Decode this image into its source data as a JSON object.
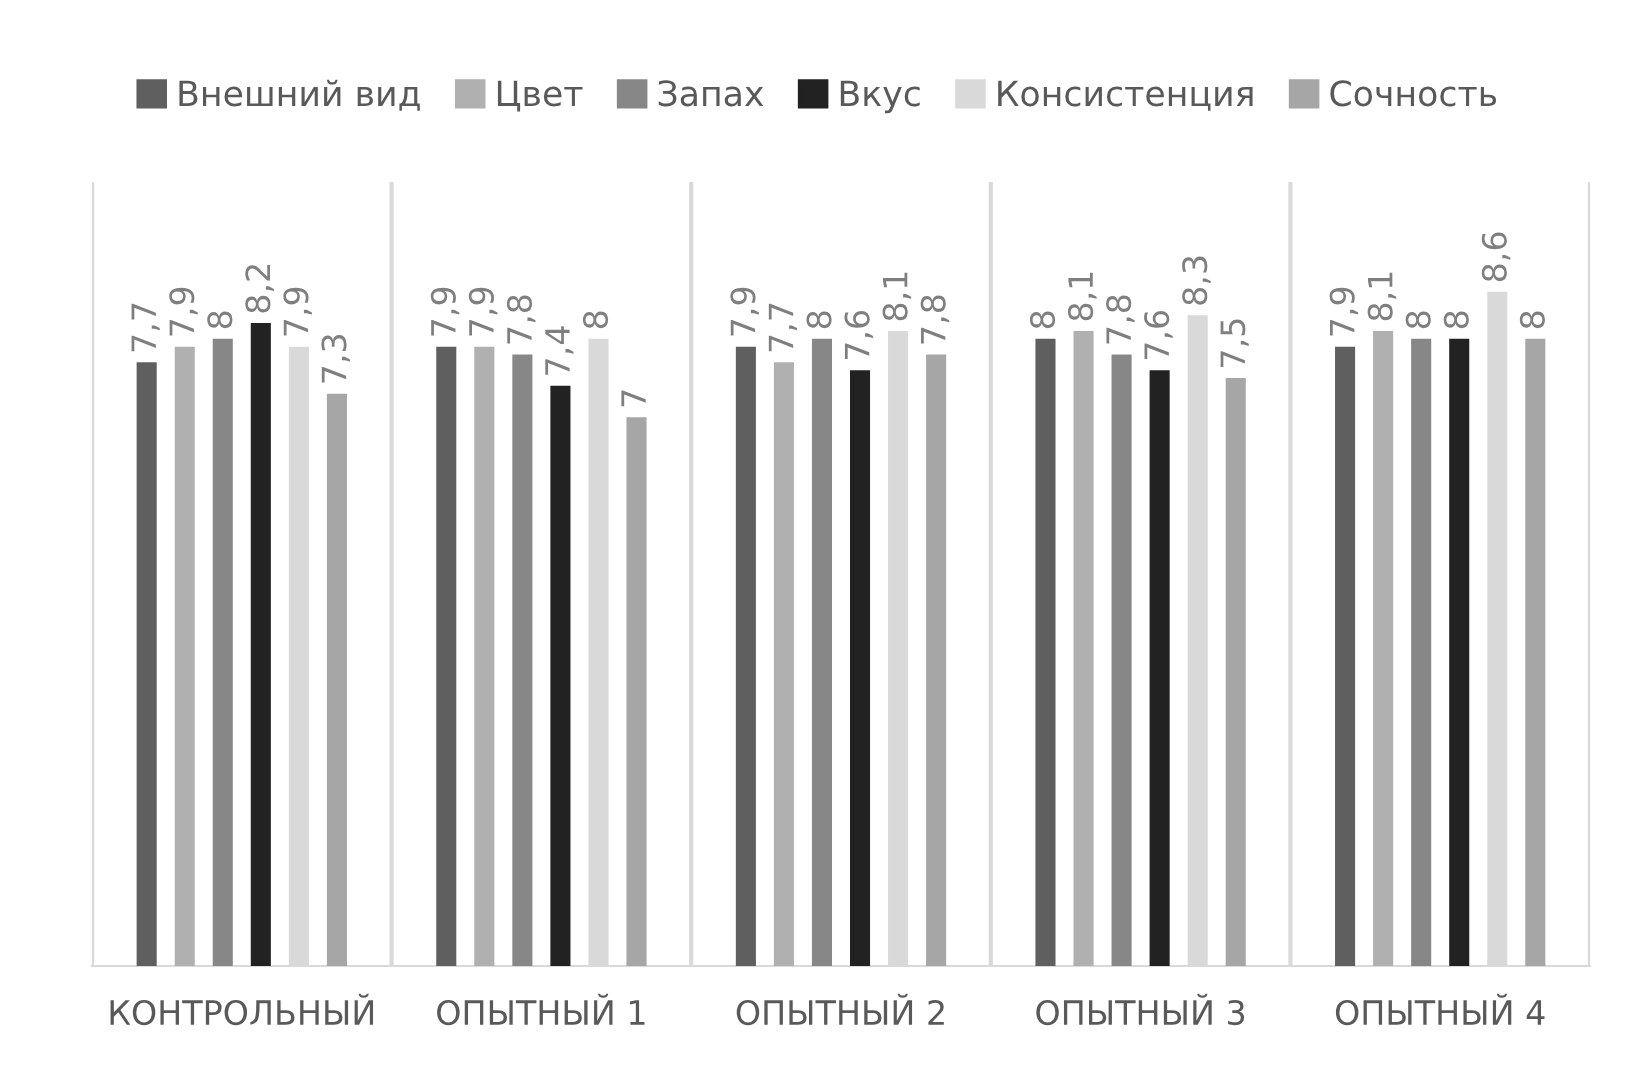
{
  "chart_data": {
    "type": "bar",
    "categories": [
      "КОНТРОЛЬНЫЙ",
      "ОПЫТНЫЙ 1",
      "ОПЫТНЫЙ 2",
      "ОПЫТНЫЙ 3",
      "ОПЫТНЫЙ 4"
    ],
    "series": [
      {
        "name": "Внешний вид",
        "color": "#5f5f5f",
        "values": [
          7.7,
          7.9,
          7.9,
          8,
          7.9
        ],
        "value_labels": [
          "7,7",
          "7,9",
          "7,9",
          "8",
          "7,9"
        ]
      },
      {
        "name": "Цвет",
        "color": "#b0b0b0",
        "values": [
          7.9,
          7.9,
          7.7,
          8.1,
          8.1
        ],
        "value_labels": [
          "7,9",
          "7,9",
          "7,7",
          "8,1",
          "8,1"
        ]
      },
      {
        "name": "Запах",
        "color": "#878787",
        "values": [
          8,
          7.8,
          8,
          7.8,
          8
        ],
        "value_labels": [
          "8",
          "7,8",
          "8",
          "7,8",
          "8"
        ]
      },
      {
        "name": "Вкус",
        "color": "#222222",
        "values": [
          8.2,
          7.4,
          7.6,
          7.6,
          8
        ],
        "value_labels": [
          "8,2",
          "7,4",
          "7,6",
          "7,6",
          "8"
        ]
      },
      {
        "name": "Консистенция",
        "color": "#d9d9d9",
        "values": [
          7.9,
          8,
          8.1,
          8.3,
          8.6
        ],
        "value_labels": [
          "7,9",
          "8",
          "8,1",
          "8,3",
          "8,6"
        ]
      },
      {
        "name": "Сочность",
        "color": "#a6a6a6",
        "values": [
          7.3,
          7,
          7.8,
          7.5,
          8
        ],
        "value_labels": [
          "7,3",
          "7",
          "7,8",
          "7,5",
          "8"
        ]
      }
    ],
    "ylim": [
      0,
      10
    ],
    "tick_labels": "x",
    "grid": "x",
    "legend": "top"
  }
}
